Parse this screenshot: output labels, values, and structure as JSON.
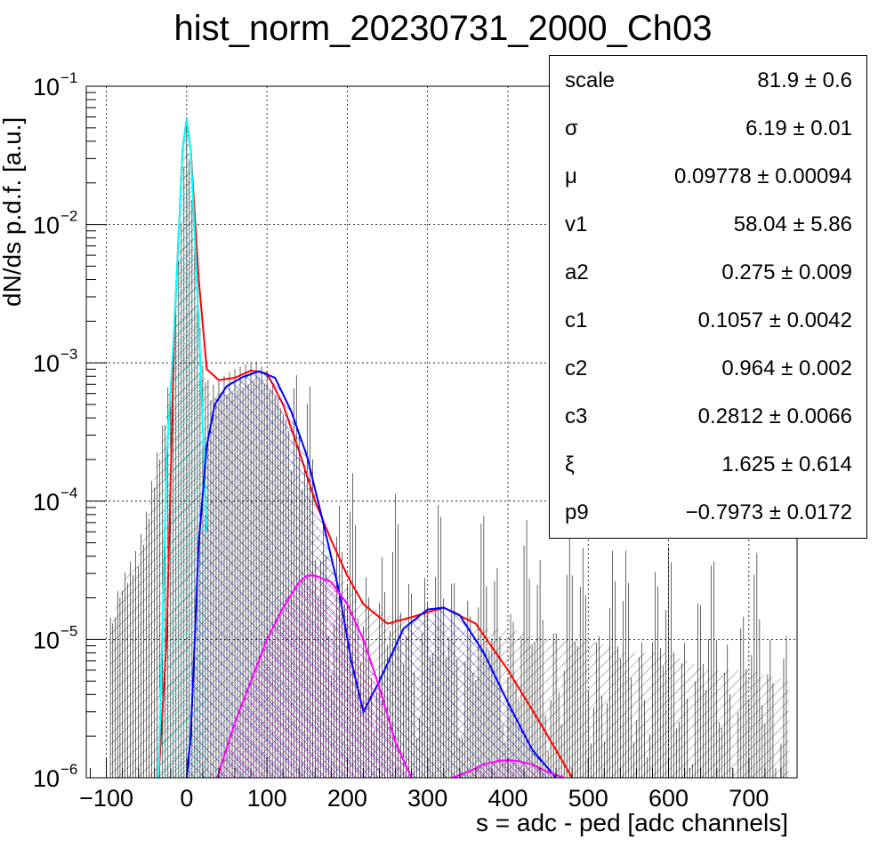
{
  "chart_data": {
    "type": "histogram-fit",
    "title": "hist_norm_20230731_2000_Ch03",
    "xlabel": "s = adc - ped [adc channels]",
    "ylabel": "dN/ds p.d.f. [a.u.]",
    "xlim": [
      -125,
      760
    ],
    "ylim": [
      1e-06,
      0.1
    ],
    "yscale": "log",
    "grid": true,
    "x_ticks": [
      -100,
      0,
      100,
      200,
      300,
      400,
      500,
      600,
      700
    ],
    "y_ticks": [
      "10^-6",
      "10^-5",
      "10^-4",
      "10^-3",
      "10^-2",
      "10^-1"
    ],
    "legend": "top-right",
    "series": [
      {
        "name": "",
        "kind": "histogram",
        "color": "#000000",
        "fill": "hatched",
        "x": [
          -95,
          -80,
          -60,
          -50,
          -40,
          -30,
          -20,
          -10,
          0,
          10,
          20,
          30,
          50,
          70,
          90,
          110,
          130,
          150,
          170,
          190,
          210,
          250,
          300,
          350,
          400,
          450,
          500,
          550,
          600,
          650,
          700,
          750
        ],
        "y": [
          1.2e-05,
          2.5e-05,
          4e-05,
          7e-05,
          0.00015,
          0.0003,
          0.0008,
          0.005,
          0.055,
          0.008,
          0.0009,
          0.0006,
          0.0007,
          0.0008,
          0.0009,
          0.0006,
          0.0003,
          0.00012,
          5e-05,
          3e-05,
          2e-05,
          1.5e-05,
          1.4e-05,
          1.2e-05,
          1.2e-05,
          1e-05,
          1e-05,
          8e-06,
          8e-06,
          6e-06,
          6e-06,
          5e-06
        ]
      },
      {
        "name": "",
        "kind": "line",
        "color": "#ff0000",
        "x": [
          -35,
          -25,
          -15,
          -5,
          0,
          5,
          15,
          25,
          40,
          60,
          80,
          100,
          120,
          140,
          160,
          180,
          200,
          220,
          250,
          280,
          320,
          360,
          400,
          440,
          480
        ],
        "y": [
          1e-06,
          1e-05,
          0.002,
          0.035,
          0.058,
          0.035,
          0.004,
          0.0009,
          0.00075,
          0.00078,
          0.00088,
          0.00084,
          0.0005,
          0.00023,
          0.0001,
          5.2e-05,
          2.9e-05,
          1.8e-05,
          1.3e-05,
          1.45e-05,
          1.7e-05,
          1.3e-05,
          6e-06,
          2.5e-06,
          1e-06
        ]
      },
      {
        "name": "",
        "kind": "line",
        "color": "#00ffff",
        "fill": "hatched",
        "x": [
          -35,
          -25,
          -15,
          -5,
          0,
          5,
          15,
          25
        ],
        "y": [
          1e-06,
          0.0002,
          0.002,
          0.035,
          0.058,
          0.035,
          0.002,
          6e-05
        ]
      },
      {
        "name": "",
        "kind": "line",
        "color": "#0000ff",
        "fill": "hatched",
        "x": [
          0,
          5,
          10,
          15,
          25,
          35,
          50,
          70,
          90,
          110,
          130,
          150,
          170,
          190,
          205,
          220,
          240,
          270,
          300,
          320,
          340,
          370,
          400,
          430,
          460
        ],
        "y": [
          1e-06,
          2e-06,
          1e-05,
          5e-05,
          0.00025,
          0.0005,
          0.00068,
          0.00079,
          0.00087,
          0.00078,
          0.00045,
          0.00021,
          7e-05,
          2.2e-05,
          7e-06,
          3e-06,
          5e-06,
          1.2e-05,
          1.65e-05,
          1.7e-05,
          1.5e-05,
          8e-06,
          3.5e-06,
          1.6e-06,
          1e-06
        ]
      },
      {
        "name": "",
        "kind": "line",
        "color": "#ff00ff",
        "fill": "hatched",
        "x": [
          38,
          60,
          80,
          100,
          120,
          140,
          150,
          160,
          180,
          200,
          220,
          240,
          260,
          280
        ],
        "y": [
          1e-06,
          2.5e-06,
          5e-06,
          1e-05,
          1.7e-05,
          2.6e-05,
          2.9e-05,
          2.9e-05,
          2.6e-05,
          1.8e-05,
          1e-05,
          4.5e-06,
          1.8e-06,
          1e-06
        ]
      },
      {
        "name": "",
        "kind": "line",
        "color": "#ff00ff",
        "fill": "hatched",
        "x": [
          330,
          350,
          370,
          390,
          400,
          410,
          430,
          450,
          470
        ],
        "y": [
          1e-06,
          1.1e-06,
          1.25e-06,
          1.33e-06,
          1.34e-06,
          1.33e-06,
          1.25e-06,
          1.1e-06,
          1e-06
        ]
      }
    ]
  },
  "stats": {
    "rows": [
      {
        "name": "scale",
        "value": "81.9 ± 0.6"
      },
      {
        "name": "σ",
        "value": "6.19 ± 0.01"
      },
      {
        "name": "μ",
        "value": "0.09778 ± 0.00094"
      },
      {
        "name": "v1",
        "value": "58.04 ± 5.86"
      },
      {
        "name": "a2",
        "value": "0.275 ± 0.009"
      },
      {
        "name": "c1",
        "value": "0.1057 ± 0.0042"
      },
      {
        "name": "c2",
        "value": "0.964 ± 0.002"
      },
      {
        "name": "c3",
        "value": "0.2812 ± 0.0066"
      },
      {
        "name": "ξ",
        "value": "1.625 ± 0.614"
      },
      {
        "name": "p9",
        "value": "−0.7973 ± 0.0172"
      }
    ]
  }
}
